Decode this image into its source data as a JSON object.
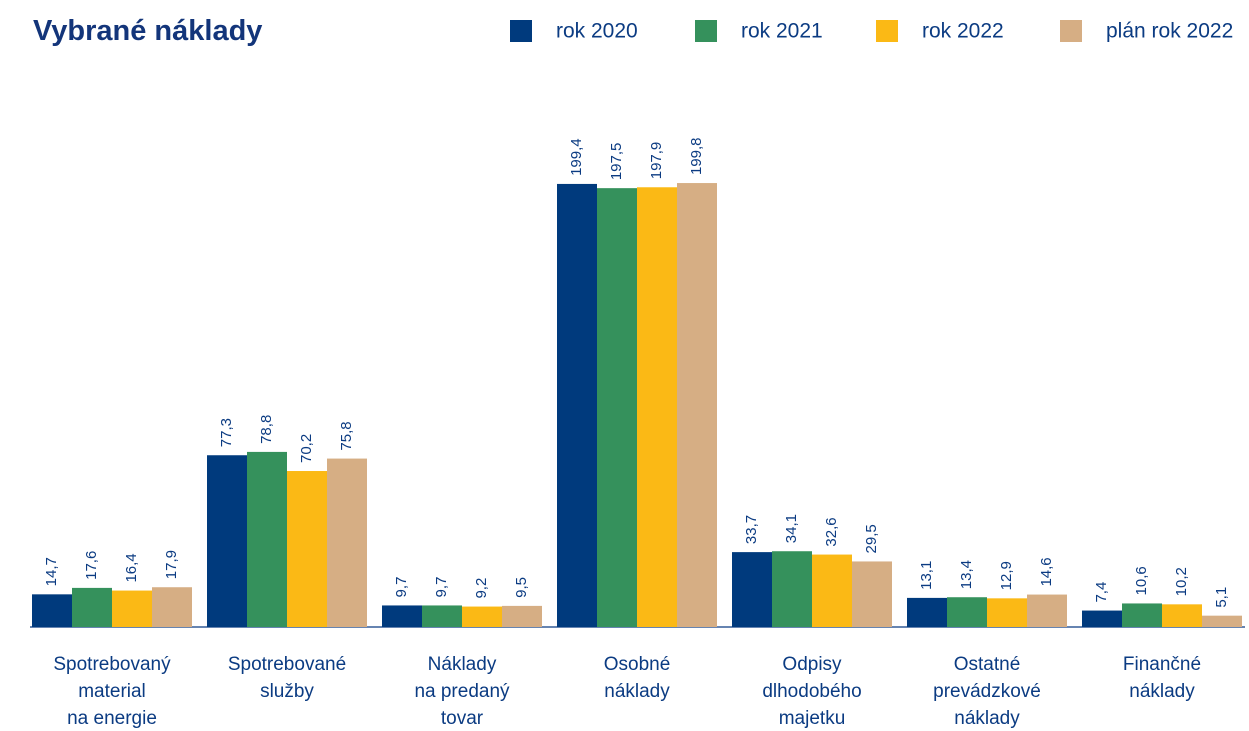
{
  "chart_data": {
    "type": "bar",
    "title": "Vybrané náklady",
    "categories": [
      [
        "Spotrebovaný",
        "material",
        "na energie"
      ],
      [
        "Spotrebované",
        "služby"
      ],
      [
        "Náklady",
        "na predaný",
        "tovar"
      ],
      [
        "Osobné",
        "náklady"
      ],
      [
        "Odpisy",
        "dlhodobého",
        "majetku"
      ],
      [
        "Ostatné",
        "prevádzkové",
        "náklady"
      ],
      [
        "Finančné",
        "náklady"
      ]
    ],
    "series": [
      {
        "name": "rok 2020",
        "color": "#003a7d",
        "values": [
          14.7,
          77.3,
          9.7,
          199.4,
          33.7,
          13.1,
          7.4
        ],
        "value_labels": [
          "14,7",
          "77,3",
          "9,7",
          "199,4",
          "33,7",
          "13,1",
          "7,4"
        ]
      },
      {
        "name": "rok 2021",
        "color": "#35915c",
        "values": [
          17.6,
          78.8,
          9.7,
          197.5,
          34.1,
          13.4,
          10.6
        ],
        "value_labels": [
          "17,6",
          "78,8",
          "9,7",
          "197,5",
          "34,1",
          "13,4",
          "10,6"
        ]
      },
      {
        "name": "rok 2022",
        "color": "#fbb915",
        "values": [
          16.4,
          70.2,
          9.2,
          197.9,
          32.6,
          12.9,
          10.2
        ],
        "value_labels": [
          "16,4",
          "70,2",
          "9,2",
          "197,9",
          "32,6",
          "12,9",
          "10,2"
        ]
      },
      {
        "name": "plán rok 2022",
        "color": "#d6ae84",
        "values": [
          17.9,
          75.8,
          9.5,
          199.8,
          29.5,
          14.6,
          5.1
        ],
        "value_labels": [
          "17,9",
          "75,8",
          "9,5",
          "199,8",
          "29,5",
          "14,6",
          "5,1"
        ]
      }
    ]
  }
}
